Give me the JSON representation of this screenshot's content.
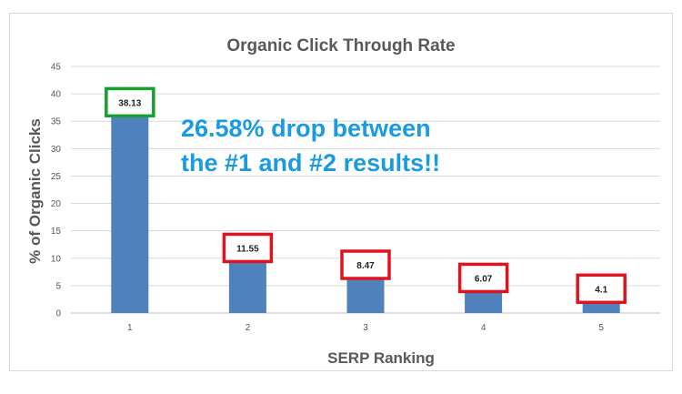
{
  "chart_data": {
    "type": "bar",
    "title": "Organic Click Through Rate",
    "xlabel": "SERP Ranking",
    "ylabel": "% of Organic Clicks",
    "categories": [
      "1",
      "2",
      "3",
      "4",
      "5"
    ],
    "values": [
      38.13,
      11.55,
      8.47,
      6.07,
      4.1
    ],
    "data_labels": [
      "38.13",
      "11.55",
      "8.47",
      "6.07",
      "4.1"
    ],
    "ylim": [
      0,
      45
    ],
    "yticks": [
      0,
      5,
      10,
      15,
      20,
      25,
      30,
      35,
      40,
      45
    ],
    "grid": true,
    "legend": "none",
    "annotation": [
      "26.58% drop between",
      "the #1 and #2 results!!"
    ],
    "label_box_colors": [
      "#17a02e",
      "#e0141e",
      "#e0141e",
      "#e0141e",
      "#e0141e"
    ],
    "bar_color": "#4f81bd",
    "annotation_color": "#1a9be0"
  }
}
